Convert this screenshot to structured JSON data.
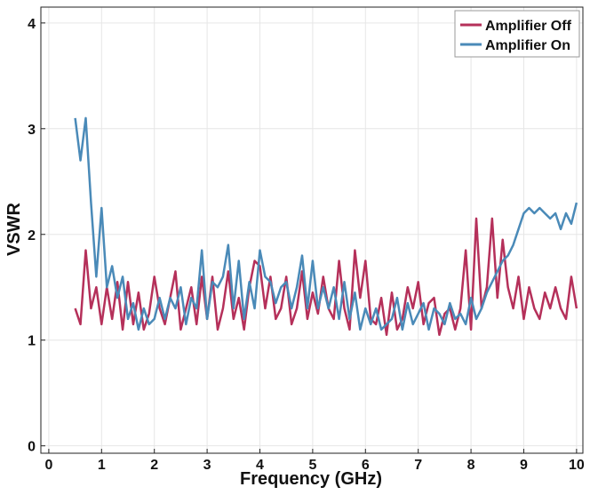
{
  "chart_data": {
    "type": "line",
    "x_label": "Frequency (GHz)",
    "y_label": "VSWR",
    "x": [
      0.5,
      0.6,
      0.7,
      0.8,
      0.9,
      1.0,
      1.1,
      1.2,
      1.3,
      1.4,
      1.5,
      1.6,
      1.7,
      1.8,
      1.9,
      2.0,
      2.1,
      2.2,
      2.3,
      2.4,
      2.5,
      2.6,
      2.7,
      2.8,
      2.9,
      3.0,
      3.1,
      3.2,
      3.3,
      3.4,
      3.5,
      3.6,
      3.7,
      3.8,
      3.9,
      4.0,
      4.1,
      4.2,
      4.3,
      4.4,
      4.5,
      4.6,
      4.7,
      4.8,
      4.9,
      5.0,
      5.1,
      5.2,
      5.3,
      5.4,
      5.5,
      5.6,
      5.7,
      5.8,
      5.9,
      6.0,
      6.1,
      6.2,
      6.3,
      6.4,
      6.5,
      6.6,
      6.7,
      6.8,
      6.9,
      7.0,
      7.1,
      7.2,
      7.3,
      7.4,
      7.5,
      7.6,
      7.7,
      7.8,
      7.9,
      8.0,
      8.1,
      8.2,
      8.3,
      8.4,
      8.5,
      8.6,
      8.7,
      8.8,
      8.9,
      9.0,
      9.1,
      9.2,
      9.3,
      9.4,
      9.5,
      9.6,
      9.7,
      9.8,
      9.9,
      10.0
    ],
    "series": [
      {
        "name": "Amplifier Off",
        "color": "#b5305a",
        "values": [
          1.3,
          1.15,
          1.85,
          1.3,
          1.5,
          1.15,
          1.5,
          1.2,
          1.55,
          1.1,
          1.55,
          1.15,
          1.45,
          1.1,
          1.25,
          1.6,
          1.3,
          1.15,
          1.4,
          1.65,
          1.1,
          1.3,
          1.5,
          1.15,
          1.6,
          1.2,
          1.6,
          1.1,
          1.3,
          1.65,
          1.2,
          1.4,
          1.1,
          1.5,
          1.75,
          1.7,
          1.3,
          1.6,
          1.2,
          1.3,
          1.6,
          1.15,
          1.3,
          1.65,
          1.2,
          1.45,
          1.25,
          1.6,
          1.3,
          1.2,
          1.75,
          1.3,
          1.1,
          1.85,
          1.4,
          1.75,
          1.2,
          1.15,
          1.4,
          1.05,
          1.45,
          1.1,
          1.2,
          1.5,
          1.3,
          1.55,
          1.15,
          1.35,
          1.4,
          1.05,
          1.25,
          1.3,
          1.1,
          1.3,
          1.85,
          1.1,
          2.15,
          1.3,
          1.5,
          2.15,
          1.4,
          1.95,
          1.5,
          1.3,
          1.6,
          1.2,
          1.5,
          1.3,
          1.2,
          1.45,
          1.3,
          1.5,
          1.3,
          1.2,
          1.6,
          1.3
        ]
      },
      {
        "name": "Amplifier On",
        "color": "#4a8ab8",
        "values": [
          3.1,
          2.7,
          3.1,
          2.3,
          1.6,
          2.25,
          1.5,
          1.7,
          1.4,
          1.6,
          1.2,
          1.35,
          1.1,
          1.3,
          1.15,
          1.2,
          1.4,
          1.2,
          1.4,
          1.3,
          1.5,
          1.15,
          1.4,
          1.3,
          1.85,
          1.2,
          1.55,
          1.5,
          1.6,
          1.9,
          1.3,
          1.75,
          1.2,
          1.55,
          1.3,
          1.85,
          1.6,
          1.55,
          1.35,
          1.5,
          1.55,
          1.3,
          1.5,
          1.8,
          1.3,
          1.75,
          1.3,
          1.5,
          1.3,
          1.5,
          1.2,
          1.55,
          1.2,
          1.45,
          1.1,
          1.3,
          1.15,
          1.3,
          1.1,
          1.15,
          1.2,
          1.4,
          1.1,
          1.35,
          1.15,
          1.25,
          1.35,
          1.1,
          1.3,
          1.25,
          1.15,
          1.35,
          1.2,
          1.25,
          1.15,
          1.4,
          1.2,
          1.3,
          1.45,
          1.55,
          1.65,
          1.75,
          1.8,
          1.9,
          2.05,
          2.2,
          2.25,
          2.2,
          2.25,
          2.2,
          2.15,
          2.2,
          2.05,
          2.2,
          2.1,
          2.3
        ]
      }
    ],
    "xlim": [
      -0.15,
      10.12
    ],
    "ylim": [
      -0.07,
      4.15
    ],
    "xticks": [
      0,
      1,
      2,
      3,
      4,
      5,
      6,
      7,
      8,
      9,
      10
    ],
    "yticks": [
      0,
      1,
      2,
      3,
      4
    ],
    "grid": true,
    "legend": "upper right"
  }
}
